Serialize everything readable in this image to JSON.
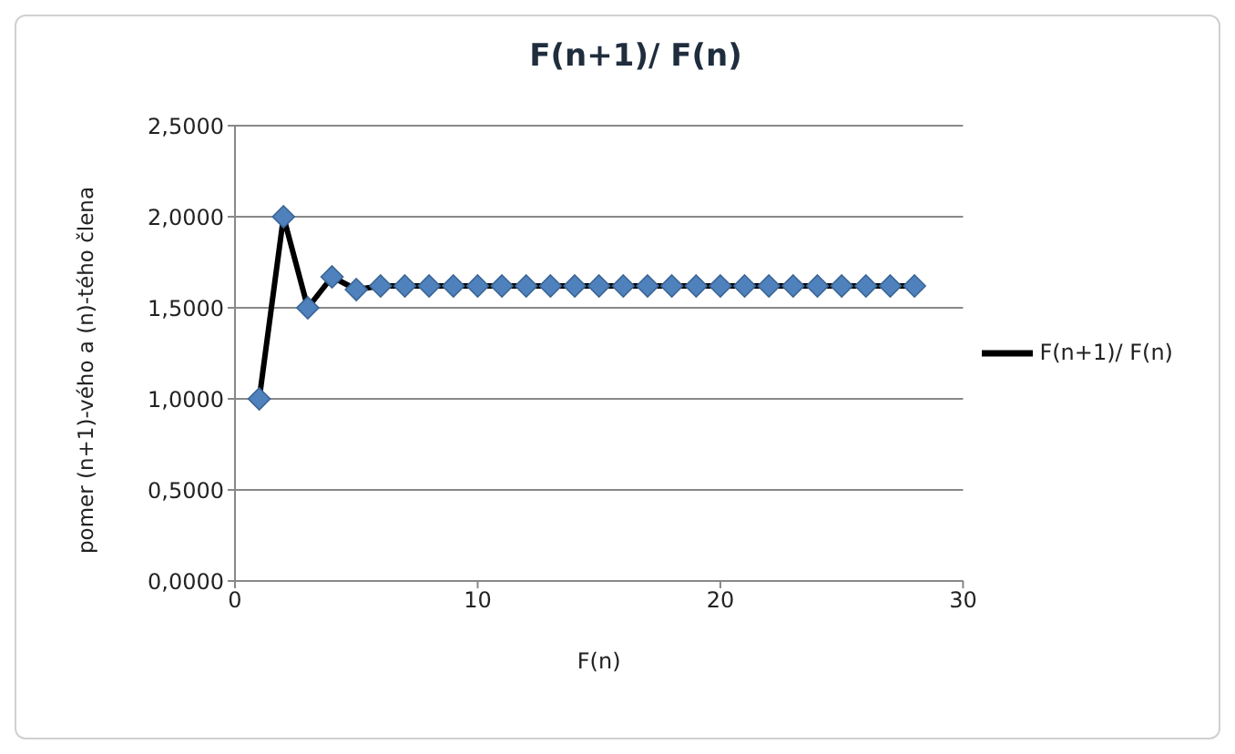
{
  "chart_data": {
    "type": "line",
    "title": "F(n+1)/ F(n)",
    "xlabel": "F(n)",
    "ylabel": "pomer (n+1)-vého a (n)-tého člena",
    "x": [
      1,
      2,
      3,
      4,
      5,
      6,
      7,
      8,
      9,
      10,
      11,
      12,
      13,
      14,
      15,
      16,
      17,
      18,
      19,
      20,
      21,
      22,
      23,
      24,
      25,
      26,
      27,
      28
    ],
    "series": [
      {
        "name": "F(n+1)/ F(n)",
        "color": "#000000",
        "values": [
          1,
          2,
          1.5,
          1.67,
          1.6,
          1.62,
          1.62,
          1.62,
          1.62,
          1.62,
          1.62,
          1.62,
          1.62,
          1.62,
          1.62,
          1.62,
          1.62,
          1.62,
          1.62,
          1.62,
          1.62,
          1.62,
          1.62,
          1.62,
          1.62,
          1.62,
          1.62,
          1.62
        ]
      }
    ],
    "xlim": [
      0,
      30
    ],
    "xticks": [
      0,
      10,
      20,
      30
    ],
    "ylim": [
      0,
      2.5
    ],
    "yticks": [
      {
        "value": 0,
        "label": "0,0000"
      },
      {
        "value": 0.5,
        "label": "0,5000"
      },
      {
        "value": 1,
        "label": "1,0000"
      },
      {
        "value": 1.5,
        "label": "1,5000"
      },
      {
        "value": 2,
        "label": "2,0000"
      },
      {
        "value": 2.5,
        "label": "2,5000"
      }
    ],
    "grid": "y",
    "legend": "right",
    "marker": "diamond",
    "line_style": "solid"
  }
}
